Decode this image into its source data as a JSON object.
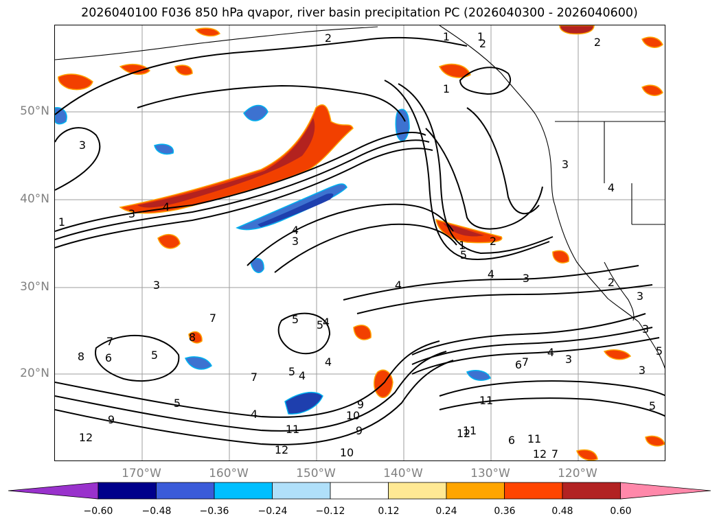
{
  "title": "2026040100 F036 850 hPa qvapor, river basin precipitation PC (2026040300 - 2026040600)",
  "map": {
    "lat_labels": [
      "50°N",
      "40°N",
      "30°N",
      "20°N"
    ],
    "lon_labels": [
      "170°W",
      "160°W",
      "150°W",
      "140°W",
      "130°W",
      "120°W"
    ],
    "contour_labels": [
      "2",
      "1",
      "1",
      "2",
      "1",
      "2",
      "3",
      "3",
      "4",
      "3",
      "3",
      "4",
      "1",
      "3",
      "2",
      "3",
      "4",
      "5",
      "4",
      "4",
      "3",
      "1",
      "2",
      "5",
      "4",
      "3",
      "7",
      "5",
      "5",
      "8",
      "7",
      "6",
      "8",
      "5",
      "5",
      "7",
      "4",
      "4",
      "9",
      "4",
      "12",
      "12",
      "11",
      "10",
      "9",
      "11",
      "10",
      "12",
      "6",
      "7",
      "4",
      "3",
      "11",
      "12",
      "11",
      "7",
      "6",
      "5",
      "3",
      "5",
      "9"
    ],
    "colors": {
      "contour": "#000000",
      "grid": "#9e9e9e",
      "coast": "#000000",
      "orange_red": "#f24000",
      "dark_red": "#b3221f",
      "orange": "#ffa500",
      "yellow": "#ffe98a",
      "blue_dark": "#1e3fae",
      "blue": "#3d72d0",
      "cyan": "#00b3f0",
      "light_blue": "#aee0f7"
    }
  },
  "colorbar": {
    "tick_labels": [
      "−0.60",
      "−0.48",
      "−0.36",
      "−0.24",
      "−0.12",
      "0.12",
      "0.24",
      "0.36",
      "0.48",
      "0.60"
    ],
    "colors": [
      "#9932cc",
      "#00008b",
      "#3a5bd9",
      "#00bfff",
      "#b0e0fa",
      "#ffffff",
      "#ffe994",
      "#ffa500",
      "#ff4500",
      "#b22222",
      "#ff88aa"
    ]
  }
}
